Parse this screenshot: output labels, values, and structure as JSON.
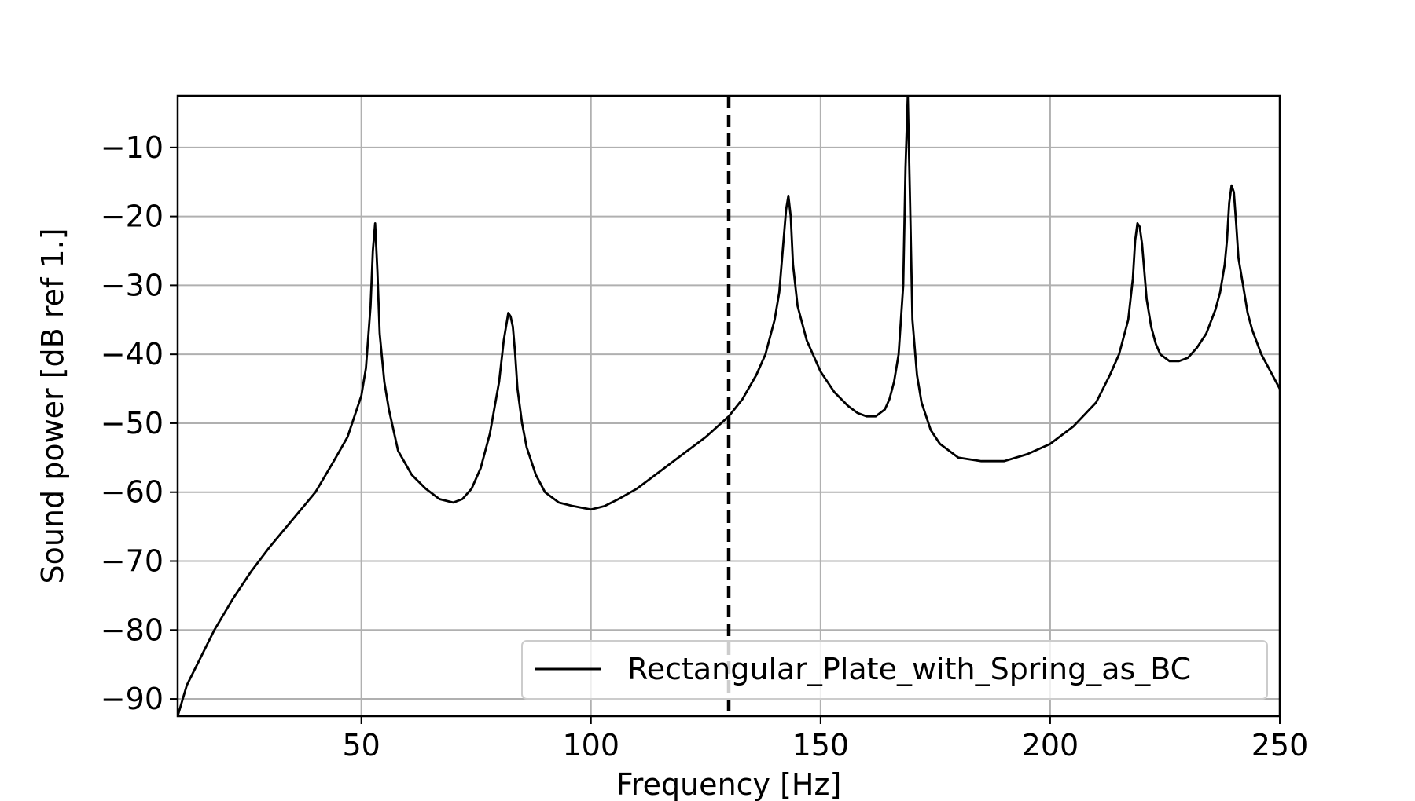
{
  "chart_data": {
    "type": "line",
    "title": "",
    "xlabel": "Frequency [Hz]",
    "ylabel": "Sound power [dB ref 1.]",
    "xlim": [
      10,
      250
    ],
    "ylim": [
      -92.5,
      -2.5
    ],
    "xticks": [
      50,
      100,
      150,
      200,
      250
    ],
    "yticks": [
      -10,
      -20,
      -30,
      -40,
      -50,
      -60,
      -70,
      -80,
      -90
    ],
    "xtick_labels": [
      "50",
      "100",
      "150",
      "200",
      "250"
    ],
    "ytick_labels": [
      "−10",
      "−20",
      "−30",
      "−40",
      "−50",
      "−60",
      "−70",
      "−80",
      "−90"
    ],
    "grid": true,
    "legend_position": "lower-right",
    "vertical_marker": {
      "x": 130,
      "style": "dashed",
      "color": "#000000"
    },
    "series": [
      {
        "name": "Rectangular_Plate_with_Spring_as_BC",
        "color": "#000000",
        "x": [
          10,
          12,
          15,
          18,
          22,
          26,
          30,
          35,
          40,
          44,
          47,
          49,
          50,
          51,
          52,
          52.5,
          53,
          53.5,
          54,
          55,
          56,
          58,
          61,
          64,
          67,
          70,
          72,
          74,
          76,
          78,
          80,
          81,
          82,
          82.5,
          83,
          83.5,
          84,
          85,
          86,
          88,
          90,
          93,
          96,
          100,
          103,
          106,
          110,
          115,
          120,
          125,
          130,
          133,
          136,
          138,
          140,
          141,
          142,
          142.5,
          143,
          143.5,
          144,
          145,
          147,
          150,
          153,
          156,
          158,
          160,
          162,
          164,
          165,
          166,
          167,
          168,
          168.5,
          169,
          169.5,
          170,
          171,
          172,
          174,
          176,
          180,
          185,
          190,
          195,
          200,
          205,
          210,
          213,
          215,
          217,
          218,
          218.5,
          219,
          219.5,
          220,
          220.5,
          221,
          222,
          223,
          224,
          226,
          228,
          230,
          232,
          234,
          236,
          237,
          238,
          238.5,
          239,
          239.5,
          240,
          240.5,
          241,
          242,
          243,
          244,
          246,
          248,
          250
        ],
        "values": [
          -92.5,
          -88,
          -84,
          -80,
          -75.5,
          -71.5,
          -68,
          -64,
          -60,
          -55.5,
          -52,
          -48,
          -46,
          -42,
          -33,
          -25,
          -21,
          -28,
          -37,
          -44,
          -48,
          -54,
          -57.5,
          -59.5,
          -61,
          -61.5,
          -61,
          -59.5,
          -56.5,
          -51.5,
          -44,
          -38,
          -34,
          -34.5,
          -36,
          -40,
          -45,
          -50,
          -53.5,
          -57.5,
          -60,
          -61.5,
          -62,
          -62.5,
          -62,
          -61,
          -59.5,
          -57,
          -54.5,
          -52,
          -49,
          -46.5,
          -43,
          -40,
          -35,
          -31,
          -23,
          -19,
          -17,
          -20,
          -27,
          -33,
          -38,
          -42.5,
          -45.5,
          -47.5,
          -48.5,
          -49,
          -49,
          -48,
          -46.5,
          -44,
          -40,
          -30,
          -13,
          -2.5,
          -18,
          -35,
          -43,
          -47,
          -51,
          -53,
          -55,
          -55.5,
          -55.5,
          -54.5,
          -53,
          -50.5,
          -47,
          -43,
          -40,
          -35,
          -29,
          -23.5,
          -21,
          -21.5,
          -24,
          -28,
          -32,
          -36,
          -38.5,
          -40,
          -41,
          -41,
          -40.5,
          -39,
          -37,
          -33.5,
          -31,
          -27,
          -23.5,
          -18,
          -15.5,
          -16.5,
          -21,
          -26,
          -30,
          -34,
          -36.5,
          -40,
          -42.5,
          -45
        ]
      }
    ]
  }
}
